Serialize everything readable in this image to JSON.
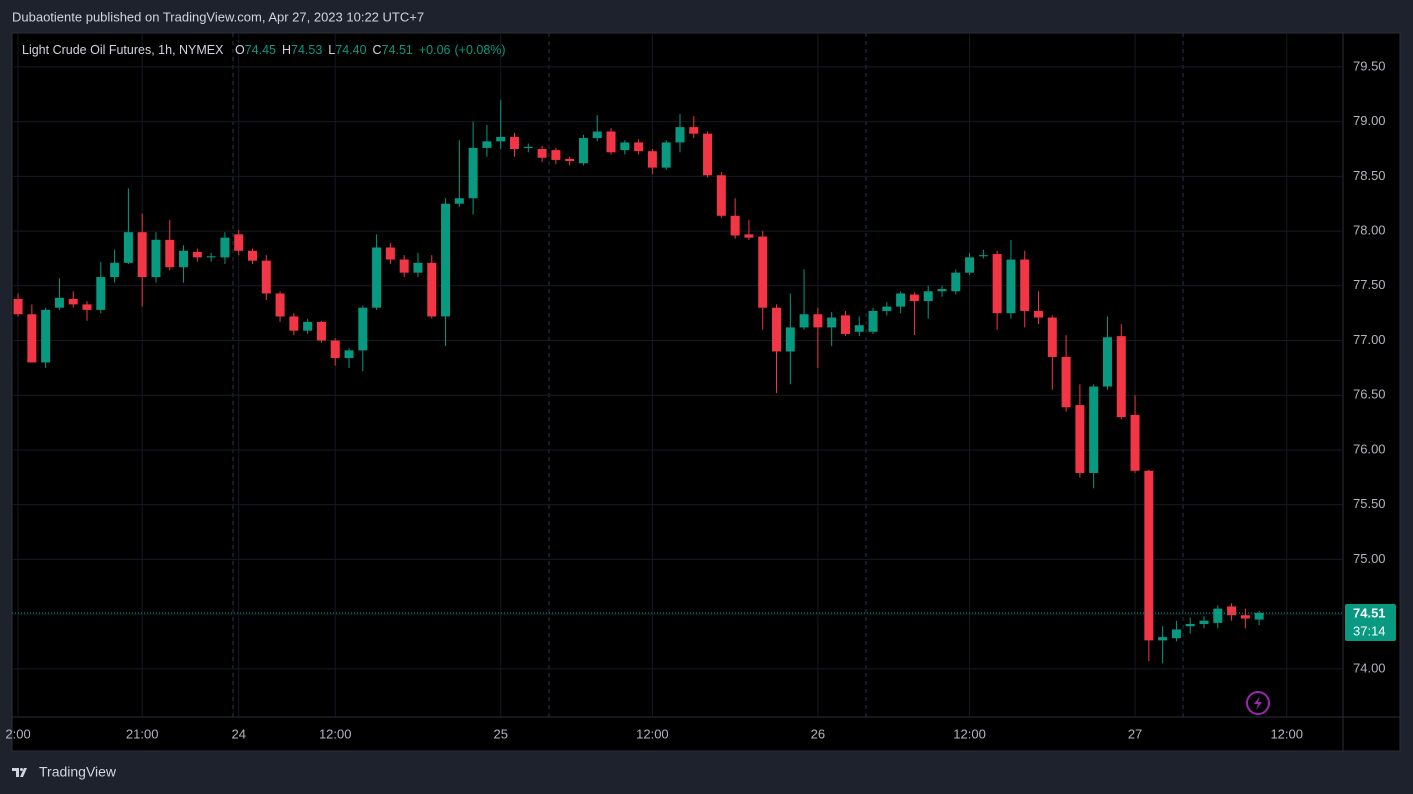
{
  "header": "Dubaotiente published on TradingView.com, Apr 27, 2023 10:22 UTC+7",
  "footer": "TradingView",
  "chart_data": {
    "type": "candlestick",
    "title": "Light Crude Oil Futures, 1h, NYMEX",
    "legend_values": [
      {
        "prefix": "O",
        "text": "74.45"
      },
      {
        "prefix": "H",
        "text": "74.53"
      },
      {
        "prefix": "L",
        "text": "74.40"
      },
      {
        "prefix": "C",
        "text": "74.51"
      },
      {
        "prefix": "+0.06",
        "text": "(+0.08%)"
      }
    ],
    "up_color": "#089981",
    "down_color": "#f23645",
    "open": [
      77.38,
      77.24,
      76.8,
      77.3,
      77.38,
      77.33,
      77.28,
      77.58,
      77.71,
      77.99,
      77.58,
      77.92,
      77.67,
      77.81,
      77.76,
      77.76,
      77.97,
      77.82,
      77.73,
      77.43,
      77.22,
      77.09,
      77.17,
      77.0,
      76.84,
      76.91,
      77.3,
      77.85,
      77.74,
      77.62,
      77.71,
      77.22,
      78.25,
      78.3,
      78.76,
      78.82,
      78.86,
      78.76,
      78.75,
      78.74,
      78.66,
      78.62,
      78.85,
      78.91,
      78.74,
      78.81,
      78.73,
      78.58,
      78.81,
      78.95,
      78.89,
      78.51,
      78.14,
      77.97,
      77.95,
      77.3,
      76.9,
      77.12,
      77.24,
      77.12,
      77.23,
      77.08,
      77.08,
      77.27,
      77.31,
      77.42,
      77.36,
      77.45,
      77.45,
      77.62,
      77.77,
      77.79,
      77.25,
      77.74,
      77.27,
      77.21,
      76.85,
      76.41,
      75.79,
      76.58,
      77.04,
      76.32,
      75.81,
      74.26,
      74.28,
      74.39,
      74.41,
      74.42,
      74.57,
      74.49,
      74.45
    ],
    "high": [
      77.43,
      77.33,
      77.3,
      77.57,
      77.45,
      77.36,
      77.72,
      77.83,
      78.39,
      78.16,
      77.99,
      78.1,
      77.87,
      77.84,
      77.8,
      77.99,
      78.01,
      77.84,
      77.78,
      77.45,
      77.25,
      77.2,
      77.18,
      77.02,
      76.93,
      77.32,
      77.97,
      77.89,
      77.78,
      77.8,
      77.78,
      78.3,
      78.83,
      79.0,
      78.97,
      79.2,
      78.9,
      78.8,
      78.78,
      78.76,
      78.68,
      78.88,
      79.06,
      78.94,
      78.83,
      78.84,
      78.75,
      78.83,
      79.07,
      79.05,
      78.91,
      78.54,
      78.3,
      78.1,
      78.0,
      77.33,
      77.43,
      77.65,
      77.3,
      77.26,
      77.27,
      77.22,
      77.3,
      77.35,
      77.45,
      77.44,
      77.5,
      77.5,
      77.65,
      77.8,
      77.83,
      77.82,
      77.92,
      77.82,
      77.45,
      77.23,
      77.05,
      76.6,
      76.6,
      77.22,
      77.15,
      76.5,
      75.82,
      74.39,
      74.44,
      74.47,
      74.48,
      74.58,
      74.6,
      74.55,
      74.53
    ],
    "low": [
      77.22,
      76.8,
      76.75,
      77.28,
      77.3,
      77.18,
      77.25,
      77.53,
      77.7,
      77.31,
      77.53,
      77.64,
      77.53,
      77.72,
      77.72,
      77.7,
      77.78,
      77.7,
      77.37,
      77.17,
      77.05,
      77.06,
      76.98,
      76.77,
      76.75,
      76.72,
      77.28,
      77.7,
      77.58,
      77.58,
      77.2,
      76.95,
      78.22,
      78.15,
      78.68,
      78.75,
      78.68,
      78.72,
      78.63,
      78.61,
      78.6,
      78.6,
      78.82,
      78.7,
      78.7,
      78.7,
      78.52,
      78.56,
      78.72,
      78.85,
      78.49,
      78.12,
      77.93,
      77.92,
      77.1,
      76.52,
      76.6,
      77.1,
      76.75,
      76.95,
      77.04,
      77.04,
      77.06,
      77.23,
      77.25,
      77.05,
      77.2,
      77.4,
      77.42,
      77.6,
      77.75,
      77.1,
      77.2,
      77.12,
      77.15,
      76.55,
      76.35,
      75.75,
      75.65,
      76.55,
      76.28,
      75.79,
      74.07,
      74.05,
      74.25,
      74.32,
      74.37,
      74.37,
      74.44,
      74.37,
      74.4
    ],
    "close": [
      77.24,
      76.8,
      77.28,
      77.39,
      77.33,
      77.28,
      77.58,
      77.71,
      77.99,
      77.58,
      77.92,
      77.67,
      77.82,
      77.76,
      77.77,
      77.94,
      77.82,
      77.73,
      77.43,
      77.22,
      77.09,
      77.17,
      77.0,
      76.84,
      76.91,
      77.3,
      77.85,
      77.74,
      77.62,
      77.71,
      77.22,
      78.25,
      78.3,
      78.76,
      78.82,
      78.86,
      78.75,
      78.77,
      78.67,
      78.65,
      78.64,
      78.85,
      78.91,
      78.72,
      78.81,
      78.73,
      78.58,
      78.81,
      78.95,
      78.89,
      78.51,
      78.14,
      77.96,
      77.94,
      77.3,
      76.9,
      77.12,
      77.24,
      77.12,
      77.21,
      77.06,
      77.14,
      77.27,
      77.31,
      77.43,
      77.36,
      77.45,
      77.47,
      77.62,
      77.76,
      77.78,
      77.25,
      77.74,
      77.27,
      77.21,
      76.85,
      76.39,
      75.79,
      76.58,
      77.03,
      76.3,
      75.81,
      74.26,
      74.29,
      74.36,
      74.41,
      74.44,
      74.55,
      74.49,
      74.46,
      74.51
    ],
    "xlim": [
      -0.44,
      96.08
    ],
    "xticks": [
      {
        "value": 0,
        "label": "2:00"
      },
      {
        "value": 9,
        "label": "21:00"
      },
      {
        "value": 16,
        "label": "24"
      },
      {
        "value": 23,
        "label": "12:00"
      },
      {
        "value": 35,
        "label": "25"
      },
      {
        "value": 46,
        "label": "12:00"
      },
      {
        "value": 58,
        "label": "26"
      },
      {
        "value": 69,
        "label": "12:00"
      },
      {
        "value": 81,
        "label": "27"
      },
      {
        "value": 92,
        "label": "12:00"
      }
    ],
    "ylim": [
      73.56,
      79.81
    ],
    "yticks": [
      {
        "value": 74,
        "label": "74.00"
      },
      {
        "value": 74.5,
        "label": "74.50"
      },
      {
        "value": 75,
        "label": "75.00"
      },
      {
        "value": 75.5,
        "label": "75.50"
      },
      {
        "value": 76,
        "label": "76.00"
      },
      {
        "value": 76.5,
        "label": "76.50"
      },
      {
        "value": 77,
        "label": "77.00"
      },
      {
        "value": 77.5,
        "label": "77.50"
      },
      {
        "value": 78,
        "label": "78.00"
      },
      {
        "value": 78.5,
        "label": "78.50"
      },
      {
        "value": 79,
        "label": "79.00"
      },
      {
        "value": 79.5,
        "label": "79.50"
      }
    ],
    "grid": true,
    "last_price": 74.51,
    "countdown": "37:14"
  }
}
